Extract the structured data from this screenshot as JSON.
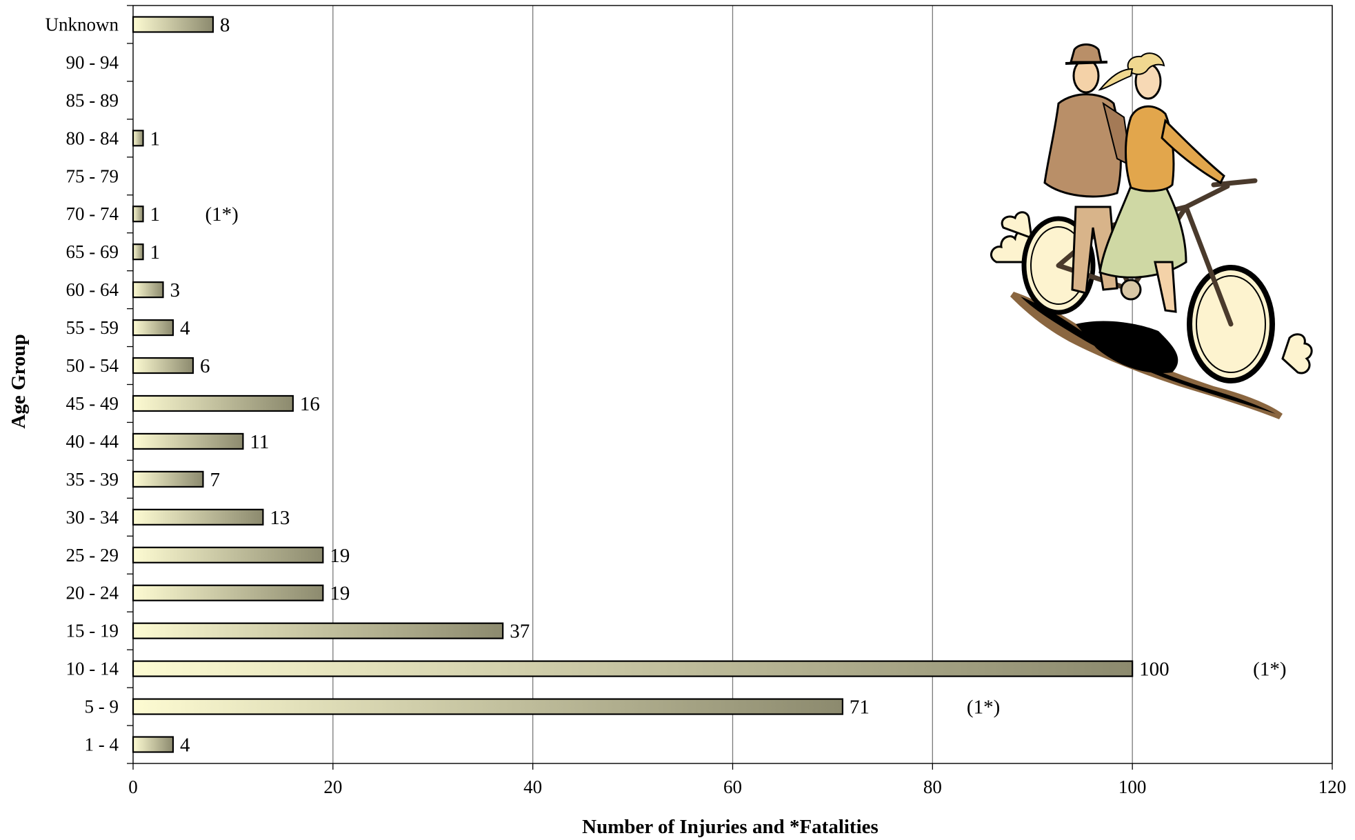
{
  "chart_data": {
    "type": "bar",
    "orientation": "horizontal",
    "title": "",
    "xlabel": "Number of Injuries and *Fatalities",
    "ylabel": "Age Group",
    "xlim": [
      0,
      120
    ],
    "xticks": [
      0,
      20,
      40,
      60,
      80,
      100,
      120
    ],
    "grid": "vertical",
    "legend": "none",
    "categories": [
      "Unknown",
      "90 - 94",
      "85 - 89",
      "80 - 84",
      "75 - 79",
      "70 - 74",
      "65 - 69",
      "60 - 64",
      "55 - 59",
      "50 - 54",
      "45 - 49",
      "40 - 44",
      "35 - 39",
      "30 - 34",
      "25 - 29",
      "20 - 24",
      "15 - 19",
      "10 - 14",
      "5 - 9",
      "1 - 4"
    ],
    "values": [
      8,
      null,
      null,
      1,
      null,
      1,
      1,
      3,
      4,
      6,
      16,
      11,
      7,
      13,
      19,
      19,
      37,
      100,
      71,
      4
    ],
    "value_labels": [
      "8",
      "",
      "",
      "1",
      "",
      "1",
      "1",
      "3",
      "4",
      "6",
      "16",
      "11",
      "7",
      "13",
      "19",
      "19",
      "37",
      "100",
      "71",
      "4"
    ],
    "fatality_annotations": [
      {
        "category": "70 - 74",
        "text": "(1*)"
      },
      {
        "category": "10 - 14",
        "text": "(1*)"
      },
      {
        "category": "5 - 9",
        "text": "(1*)"
      }
    ],
    "colors": {
      "bar_gradient_start": "#fdfbd2",
      "bar_gradient_end": "#8c8a6e",
      "bar_stroke": "#000000",
      "grid": "#7a7a7a"
    }
  },
  "illustration": {
    "icon": "tandem-bicycle-couple-icon"
  }
}
